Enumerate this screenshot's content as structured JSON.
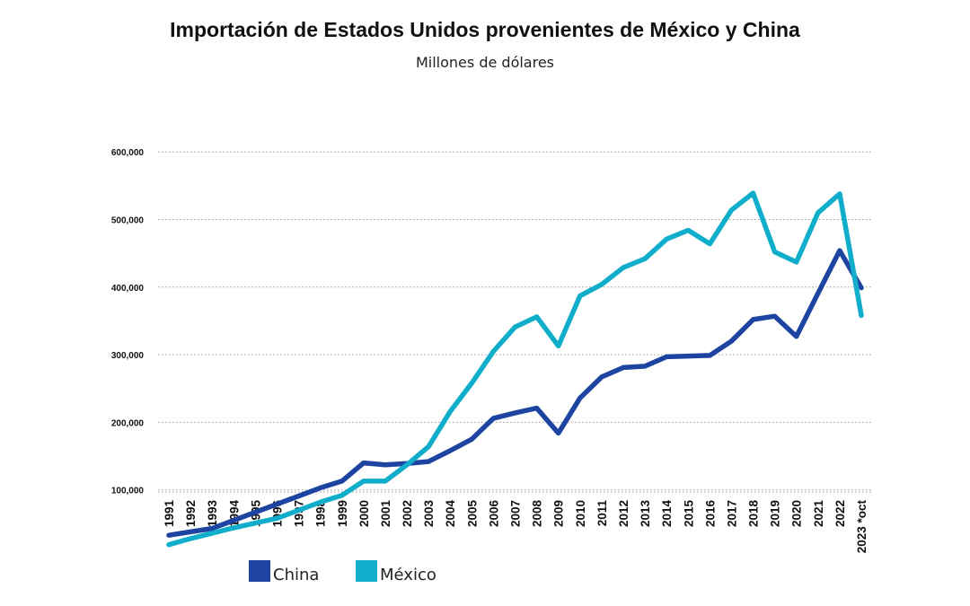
{
  "chart_data": {
    "type": "line",
    "title": "Importación de Estados Unidos provenientes de México y China",
    "subtitle": "Millones de dólares",
    "xlabel": "",
    "ylabel": "",
    "ylim": [
      0,
      600000
    ],
    "y_ticks": [
      100000,
      200000,
      300000,
      400000,
      500000,
      600000
    ],
    "y_tick_labels": [
      "100,000",
      "200,000",
      "300,000",
      "400,000",
      "500,000",
      "600,000"
    ],
    "grid": "horizontal dotted",
    "legend_position": "bottom-left",
    "categories": [
      "1991",
      "1992",
      "1993",
      "1994",
      "1995",
      "1996",
      "1997",
      "1998",
      "1999",
      "2000",
      "2001",
      "2002",
      "2003",
      "2004",
      "2005",
      "2006",
      "2007",
      "2008",
      "2009",
      "2010",
      "2011",
      "2012",
      "2013",
      "2014",
      "2015",
      "2016",
      "2017",
      "2018",
      "2019",
      "2020",
      "2021",
      "2022",
      "2023 *oct"
    ],
    "series": [
      {
        "name": "China",
        "color": "#1c44a0",
        "values": [
          33000,
          38000,
          43000,
          55000,
          67000,
          79000,
          91000,
          103000,
          113000,
          140000,
          137000,
          139000,
          142000,
          158000,
          175000,
          206000,
          214000,
          221000,
          184000,
          236000,
          267000,
          281000,
          283000,
          297000,
          298000,
          299000,
          320000,
          352000,
          357000,
          327000,
          391000,
          454000,
          399000
        ]
      },
      {
        "name": "México",
        "color": "#10aecb",
        "values": [
          19000,
          28000,
          36000,
          44000,
          51000,
          58000,
          70000,
          82000,
          92000,
          113000,
          113000,
          137000,
          164000,
          216000,
          258000,
          305000,
          341000,
          356000,
          313000,
          387000,
          404000,
          429000,
          442000,
          471000,
          484000,
          464000,
          514000,
          539000,
          452000,
          437000,
          510000,
          538000,
          358000
        ]
      }
    ]
  }
}
